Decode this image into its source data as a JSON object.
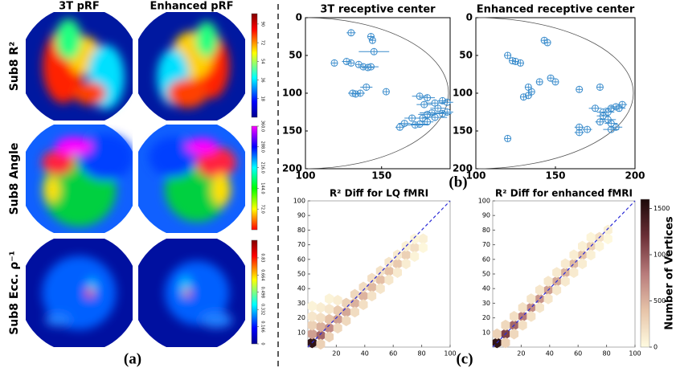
{
  "panel_labels": [
    "(a)",
    "(b)",
    "(c)"
  ],
  "panel_a": {
    "column_titles": [
      "3T pRF",
      "Enhanced pRF"
    ],
    "row_titles": [
      "Sub8 R²",
      "Sub8 Angle",
      "Sub8 Ecc. ρ⁻¹"
    ],
    "colorbars": [
      {
        "lim": [
          0,
          100
        ],
        "ticks": [
          18,
          36,
          54,
          72,
          90
        ]
      },
      {
        "lim": [
          0,
          360
        ],
        "ticks": [
          {
            "value": 72,
            "label": "72.0"
          },
          {
            "value": 144,
            "label": "144.0"
          },
          {
            "value": 216,
            "label": "216.0"
          },
          {
            "value": 288,
            "label": "288.0"
          },
          {
            "value": 360,
            "label": "360.0"
          }
        ]
      },
      {
        "lim": [
          0,
          1
        ],
        "ticks": [
          0,
          0.166,
          0.332,
          0.498,
          0.664,
          0.83
        ]
      }
    ]
  },
  "chart_data": [
    {
      "type": "scatter",
      "title": "3T receptive center",
      "color": "#3a8ccc",
      "y_inverted": true,
      "xlim": [
        100,
        195
      ],
      "ylim": [
        0,
        200
      ],
      "xticks": [
        100,
        150
      ],
      "yticks": [
        0,
        50,
        100,
        150,
        200
      ],
      "x": [
        130,
        143,
        144,
        145,
        119,
        127,
        130,
        135,
        138,
        141,
        143,
        140,
        131,
        133,
        136,
        153,
        175,
        180,
        178,
        185,
        190,
        193,
        187,
        183,
        180,
        177,
        170,
        165,
        162,
        172,
        185,
        190,
        193,
        180,
        175
      ],
      "y": [
        20,
        25,
        30,
        45,
        60,
        58,
        60,
        62,
        65,
        66,
        65,
        92,
        100,
        101,
        100,
        98,
        104,
        106,
        115,
        113,
        110,
        112,
        120,
        126,
        128,
        133,
        133,
        140,
        145,
        142,
        132,
        127,
        125,
        138,
        141
      ],
      "xerr": [
        3,
        2,
        2,
        10,
        2,
        3,
        2,
        2,
        2,
        4,
        5,
        4,
        3,
        3,
        3,
        2,
        5,
        5,
        5,
        6,
        3,
        4,
        5,
        8,
        6,
        4,
        5,
        4,
        3,
        8,
        8,
        6,
        4,
        4,
        6
      ]
    },
    {
      "type": "scatter",
      "title": "Enhanced receptive center",
      "color": "#3a8ccc",
      "y_inverted": true,
      "xlim": [
        100,
        200
      ],
      "ylim": [
        0,
        200
      ],
      "xticks": [
        100,
        150,
        200
      ],
      "yticks": [
        0,
        50,
        100,
        150,
        200
      ],
      "x": [
        120,
        123,
        125,
        128,
        143,
        145,
        140,
        133,
        135,
        130,
        133,
        147,
        150,
        165,
        178,
        165,
        165,
        170,
        178,
        180,
        183,
        185,
        188,
        190,
        192,
        183,
        185,
        188,
        185,
        120,
        175,
        180
      ],
      "y": [
        50,
        57,
        58,
        60,
        30,
        33,
        85,
        92,
        98,
        105,
        103,
        80,
        85,
        95,
        92,
        145,
        152,
        148,
        138,
        130,
        125,
        120,
        118,
        120,
        115,
        135,
        148,
        145,
        140,
        160,
        120,
        125
      ],
      "xerr": [
        2,
        2,
        2,
        2,
        2,
        2,
        2,
        2,
        2,
        2,
        2,
        2,
        2,
        2,
        2,
        3,
        3,
        3,
        3,
        4,
        4,
        4,
        4,
        4,
        3,
        5,
        5,
        4,
        4,
        2,
        4,
        4
      ]
    },
    {
      "type": "hexbin",
      "title": "R² Diff for LQ fMRI",
      "xlim": [
        0,
        100
      ],
      "ylim": [
        0,
        100
      ],
      "xticks": [
        20,
        40,
        60,
        80,
        100
      ],
      "yticks": [
        10,
        20,
        30,
        40,
        50,
        60,
        70,
        80,
        90,
        100
      ],
      "diagonal_color": "#2b2bd6",
      "x": [
        3,
        9,
        15,
        21,
        27,
        33,
        39,
        45,
        51,
        57,
        63,
        69,
        75,
        81,
        3,
        9,
        15,
        21,
        27,
        33,
        39,
        45,
        51,
        57,
        63,
        69,
        75,
        9,
        15,
        21,
        27,
        33,
        39,
        45,
        51,
        57,
        63,
        69,
        75,
        81,
        3,
        3,
        9,
        9,
        15,
        15,
        21,
        3
      ],
      "y": [
        3,
        8,
        13,
        19,
        24,
        30,
        35,
        41,
        46,
        52,
        57,
        63,
        68,
        74,
        9,
        14,
        19,
        25,
        30,
        36,
        41,
        47,
        52,
        58,
        63,
        69,
        74,
        2,
        7,
        13,
        18,
        24,
        29,
        35,
        40,
        46,
        51,
        57,
        62,
        68,
        15,
        21,
        20,
        27,
        26,
        33,
        32,
        28
      ],
      "values": [
        1500,
        900,
        700,
        600,
        550,
        500,
        480,
        450,
        420,
        400,
        350,
        300,
        200,
        80,
        600,
        500,
        400,
        350,
        300,
        250,
        220,
        200,
        180,
        150,
        120,
        80,
        40,
        300,
        300,
        250,
        250,
        220,
        200,
        180,
        160,
        140,
        120,
        100,
        60,
        30,
        300,
        150,
        200,
        100,
        150,
        60,
        100,
        60
      ]
    },
    {
      "type": "hexbin",
      "title": "R² Diff for enhanced fMRI",
      "xlim": [
        0,
        100
      ],
      "ylim": [
        0,
        100
      ],
      "xticks": [
        20,
        40,
        60,
        80,
        100
      ],
      "yticks": [
        10,
        20,
        30,
        40,
        50,
        60,
        70,
        80,
        90,
        100
      ],
      "diagonal_color": "#2b2bd6",
      "x": [
        3,
        9,
        15,
        21,
        27,
        33,
        39,
        45,
        51,
        57,
        63,
        69,
        75,
        81,
        3,
        9,
        15,
        21,
        27,
        33,
        39,
        45,
        51,
        57,
        63,
        69,
        9,
        15,
        21,
        27,
        33,
        39,
        45,
        51,
        57,
        63,
        69,
        75,
        81
      ],
      "y": [
        3,
        9,
        15,
        21,
        27,
        33,
        39,
        45,
        51,
        57,
        63,
        69,
        75,
        80,
        9,
        15,
        21,
        27,
        33,
        39,
        45,
        51,
        57,
        63,
        69,
        75,
        3,
        9,
        15,
        21,
        27,
        33,
        39,
        45,
        51,
        57,
        63,
        69,
        74
      ],
      "values": [
        1500,
        1100,
        900,
        800,
        700,
        650,
        600,
        550,
        500,
        450,
        400,
        300,
        200,
        80,
        300,
        250,
        200,
        180,
        160,
        150,
        140,
        130,
        120,
        100,
        80,
        50,
        300,
        250,
        200,
        180,
        160,
        150,
        140,
        130,
        120,
        100,
        80,
        50,
        20
      ],
      "colorbar": {
        "label": "Number of Vertices",
        "lim": [
          0,
          1600
        ],
        "ticks": [
          0,
          500,
          1000,
          1500
        ],
        "colormap": [
          "#fffbe0",
          "#e6c3a8",
          "#b77a7a",
          "#6b2f36",
          "#1c0a0a"
        ]
      }
    }
  ]
}
